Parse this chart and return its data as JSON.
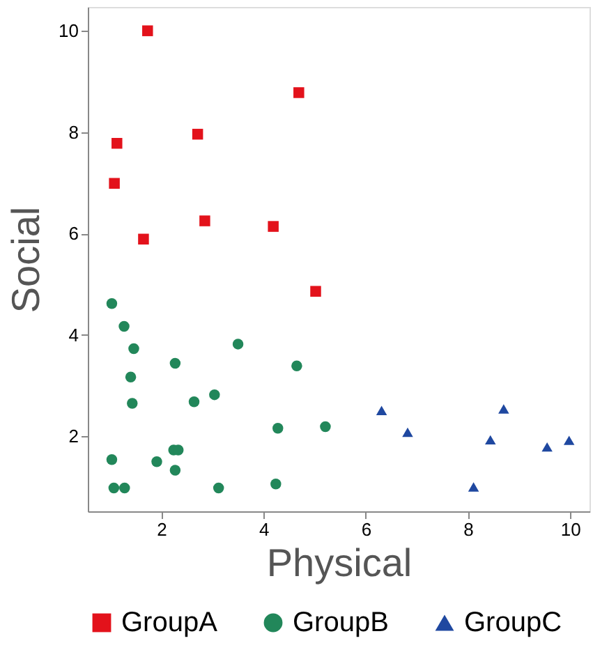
{
  "chart_data": {
    "type": "scatter",
    "xlabel": "Physical",
    "ylabel": "Social",
    "xlim": [
      0.56,
      10.38
    ],
    "ylim": [
      0.52,
      10.47
    ],
    "xticks": [
      2,
      4,
      6,
      8,
      10
    ],
    "yticks": [
      2,
      4,
      6,
      8,
      10
    ],
    "grid": false,
    "legend": "bottom",
    "series": [
      {
        "name": "GroupA",
        "color": "#e3121b",
        "marker": "square",
        "x": [
          1.73,
          4.69,
          2.71,
          1.13,
          1.08,
          2.85,
          4.19,
          1.65,
          5.02
        ],
        "values": [
          10.0,
          8.78,
          7.96,
          7.78,
          6.99,
          6.25,
          6.14,
          5.89,
          4.86
        ]
      },
      {
        "name": "GroupB",
        "color": "#22875a",
        "marker": "circle",
        "x": [
          1.03,
          1.27,
          1.46,
          1.4,
          1.43,
          2.27,
          3.5,
          4.65,
          2.64,
          3.04,
          4.28,
          5.21,
          1.03,
          1.91,
          2.24,
          2.33,
          2.27,
          1.07,
          1.28,
          3.12,
          4.24
        ],
        "values": [
          4.62,
          4.17,
          3.73,
          3.17,
          2.65,
          3.44,
          3.82,
          3.39,
          2.68,
          2.82,
          2.16,
          2.19,
          1.54,
          1.5,
          1.73,
          1.73,
          1.33,
          0.98,
          0.98,
          0.98,
          1.06
        ]
      },
      {
        "name": "GroupC",
        "color": "#1f48a0",
        "marker": "triangle",
        "x": [
          6.31,
          6.82,
          8.7,
          8.44,
          8.11,
          9.55,
          9.98
        ],
        "values": [
          2.51,
          2.08,
          2.54,
          1.93,
          1.0,
          1.79,
          1.92
        ]
      }
    ]
  }
}
